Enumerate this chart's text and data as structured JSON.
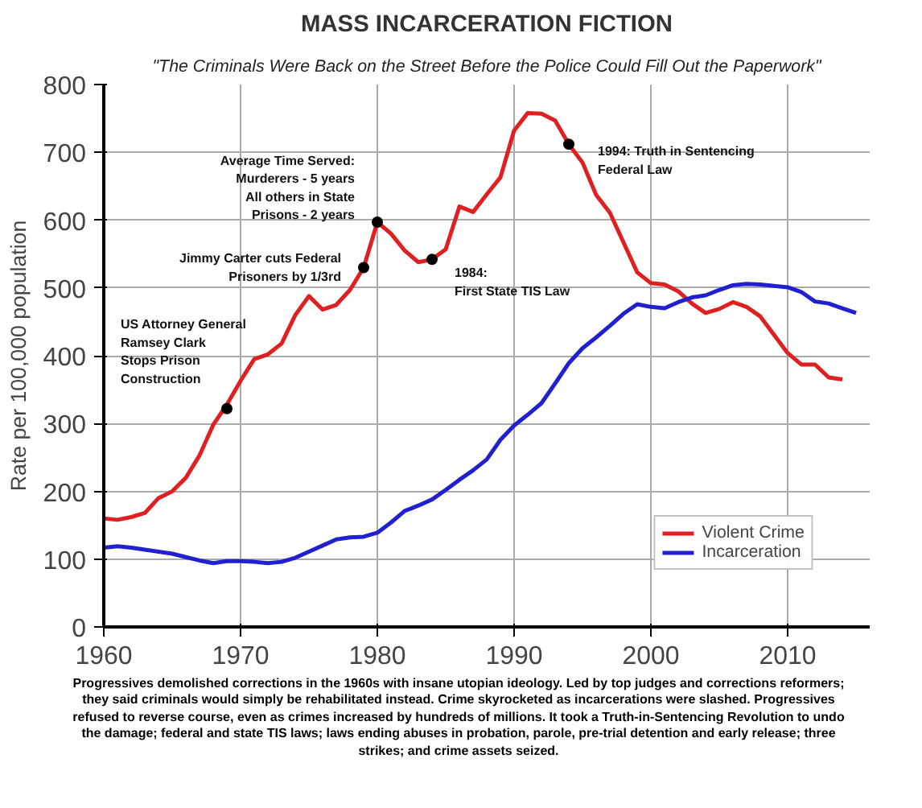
{
  "chart_data": {
    "type": "line",
    "title": "MASS INCARCERATION FICTION",
    "subtitle": "\"The Criminals Were Back on the Street Before the Police Could Fill Out the Paperwork\"",
    "ylabel": "Rate per 100,000 population",
    "xlim": [
      1960,
      2016
    ],
    "xticks": [
      1960,
      1970,
      1980,
      1990,
      2000,
      2010
    ],
    "ylim": [
      0,
      800
    ],
    "yticks": [
      0,
      100,
      200,
      300,
      400,
      500,
      600,
      700,
      800
    ],
    "grid": true,
    "legend": "bottom right",
    "line_style": "solid",
    "series": [
      {
        "name": "Violent Crime",
        "color": "#e02020",
        "x": [
          1960,
          1961,
          1962,
          1963,
          1964,
          1965,
          1966,
          1967,
          1968,
          1969,
          1970,
          1971,
          1972,
          1973,
          1974,
          1975,
          1976,
          1977,
          1978,
          1979,
          1980,
          1981,
          1982,
          1983,
          1984,
          1985,
          1986,
          1987,
          1988,
          1989,
          1990,
          1991,
          1992,
          1993,
          1994,
          1995,
          1996,
          1997,
          1998,
          1999,
          2000,
          2001,
          2002,
          2003,
          2004,
          2005,
          2006,
          2007,
          2008,
          2009,
          2010,
          2011,
          2012,
          2013,
          2014
        ],
        "values": [
          160,
          158,
          162,
          168,
          190,
          200,
          220,
          253,
          298,
          328,
          363,
          395,
          402,
          418,
          460,
          488,
          468,
          475,
          497,
          530,
          597,
          580,
          555,
          538,
          542,
          557,
          620,
          612,
          638,
          663,
          732,
          758,
          757,
          747,
          712,
          685,
          637,
          611,
          567,
          523,
          507,
          505,
          495,
          477,
          463,
          469,
          479,
          472,
          458,
          431,
          404,
          387,
          387,
          368,
          365
        ]
      },
      {
        "name": "Incarceration",
        "color": "#2020d0",
        "x": [
          1960,
          1961,
          1962,
          1963,
          1964,
          1965,
          1966,
          1967,
          1968,
          1969,
          1970,
          1971,
          1972,
          1973,
          1974,
          1975,
          1976,
          1977,
          1978,
          1979,
          1980,
          1981,
          1982,
          1983,
          1984,
          1985,
          1986,
          1987,
          1988,
          1989,
          1990,
          1991,
          1992,
          1993,
          1994,
          1995,
          1996,
          1997,
          1998,
          1999,
          2000,
          2001,
          2002,
          2003,
          2004,
          2005,
          2006,
          2007,
          2008,
          2009,
          2010,
          2011,
          2012,
          2013,
          2014,
          2015
        ],
        "values": [
          117,
          119,
          117,
          114,
          111,
          108,
          103,
          98,
          94,
          97,
          97,
          96,
          94,
          96,
          102,
          111,
          120,
          129,
          132,
          133,
          139,
          154,
          171,
          179,
          188,
          202,
          217,
          231,
          247,
          276,
          297,
          313,
          330,
          359,
          389,
          411,
          427,
          444,
          462,
          476,
          472,
          470,
          479,
          486,
          489,
          497,
          504,
          506,
          505,
          503,
          501,
          494,
          480,
          477,
          470,
          463
        ]
      }
    ],
    "annotations": [
      {
        "text": "US Attorney General\nRamsey Clark\nStops Prison\nConstruction",
        "x": 1969,
        "y": 322
      },
      {
        "text": "Jimmy Carter cuts Federal\nPrisoners by 1/3rd",
        "x": 1979,
        "y": 530
      },
      {
        "text": "Average Time Served:\nMurderers - 5 years\nAll others in State\nPrisons - 2 years",
        "x": 1980,
        "y": 597
      },
      {
        "text": "1984:\nFirst State TIS Law",
        "x": 1984,
        "y": 542
      },
      {
        "text": "1994: Truth in Sentencing\nFederal Law",
        "x": 1994,
        "y": 712
      },
      "Progressives demolished corrections in the 1960s with insane utopian ideology. Led by top judges and corrections reformers; they said criminals would simply be rehabilitated instead. Crime skyrocketed as incarcerations were slashed. Progressives refused to reverse course, even as crimes increased by hundreds of millions. It took a Truth-in-Sentencing Revolution to undo the damage; federal and state TIS laws; laws ending abuses in probation, parole, pre-trial detention and early release; three strikes; and crime assets seized."
    ]
  }
}
